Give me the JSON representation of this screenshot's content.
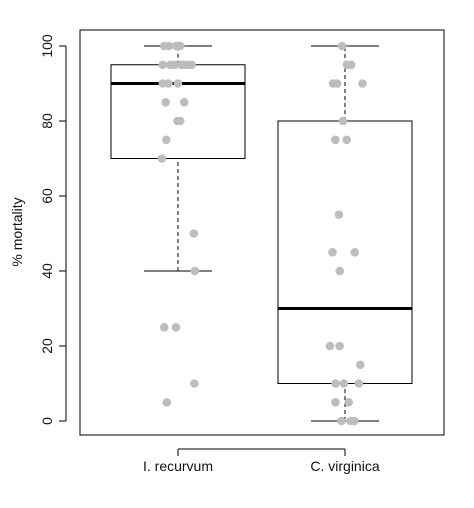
{
  "chart_data": {
    "type": "boxplot",
    "title": "",
    "ylabel": "% mortality",
    "xlabel": "",
    "ylim": [
      0,
      100
    ],
    "yticks": [
      0,
      20,
      40,
      60,
      80,
      100
    ],
    "categories": [
      "I. recurvum",
      "C. virginica"
    ],
    "boxes": [
      {
        "category": "I. recurvum",
        "whisker_low": 40,
        "q1": 70,
        "median": 90,
        "q3": 95,
        "whisker_high": 100
      },
      {
        "category": "C. virginica",
        "whisker_low": 0,
        "q1": 10,
        "median": 30,
        "q3": 80,
        "whisker_high": 100
      }
    ],
    "points": [
      {
        "category": "I. recurvum",
        "values": [
          100,
          100,
          100,
          100,
          100,
          100,
          95,
          95,
          95,
          95,
          95,
          95,
          95,
          90,
          90,
          90,
          85,
          85,
          80,
          80,
          75,
          70,
          50,
          40,
          25,
          25,
          10,
          5
        ]
      },
      {
        "category": "C. virginica",
        "values": [
          100,
          95,
          95,
          90,
          90,
          90,
          80,
          75,
          75,
          55,
          45,
          45,
          40,
          20,
          20,
          15,
          10,
          10,
          10,
          5,
          5,
          0,
          0,
          0
        ]
      }
    ],
    "colors": {
      "box": "#000000",
      "median": "#000000",
      "points": "#bdbdbd"
    },
    "grid": false
  }
}
